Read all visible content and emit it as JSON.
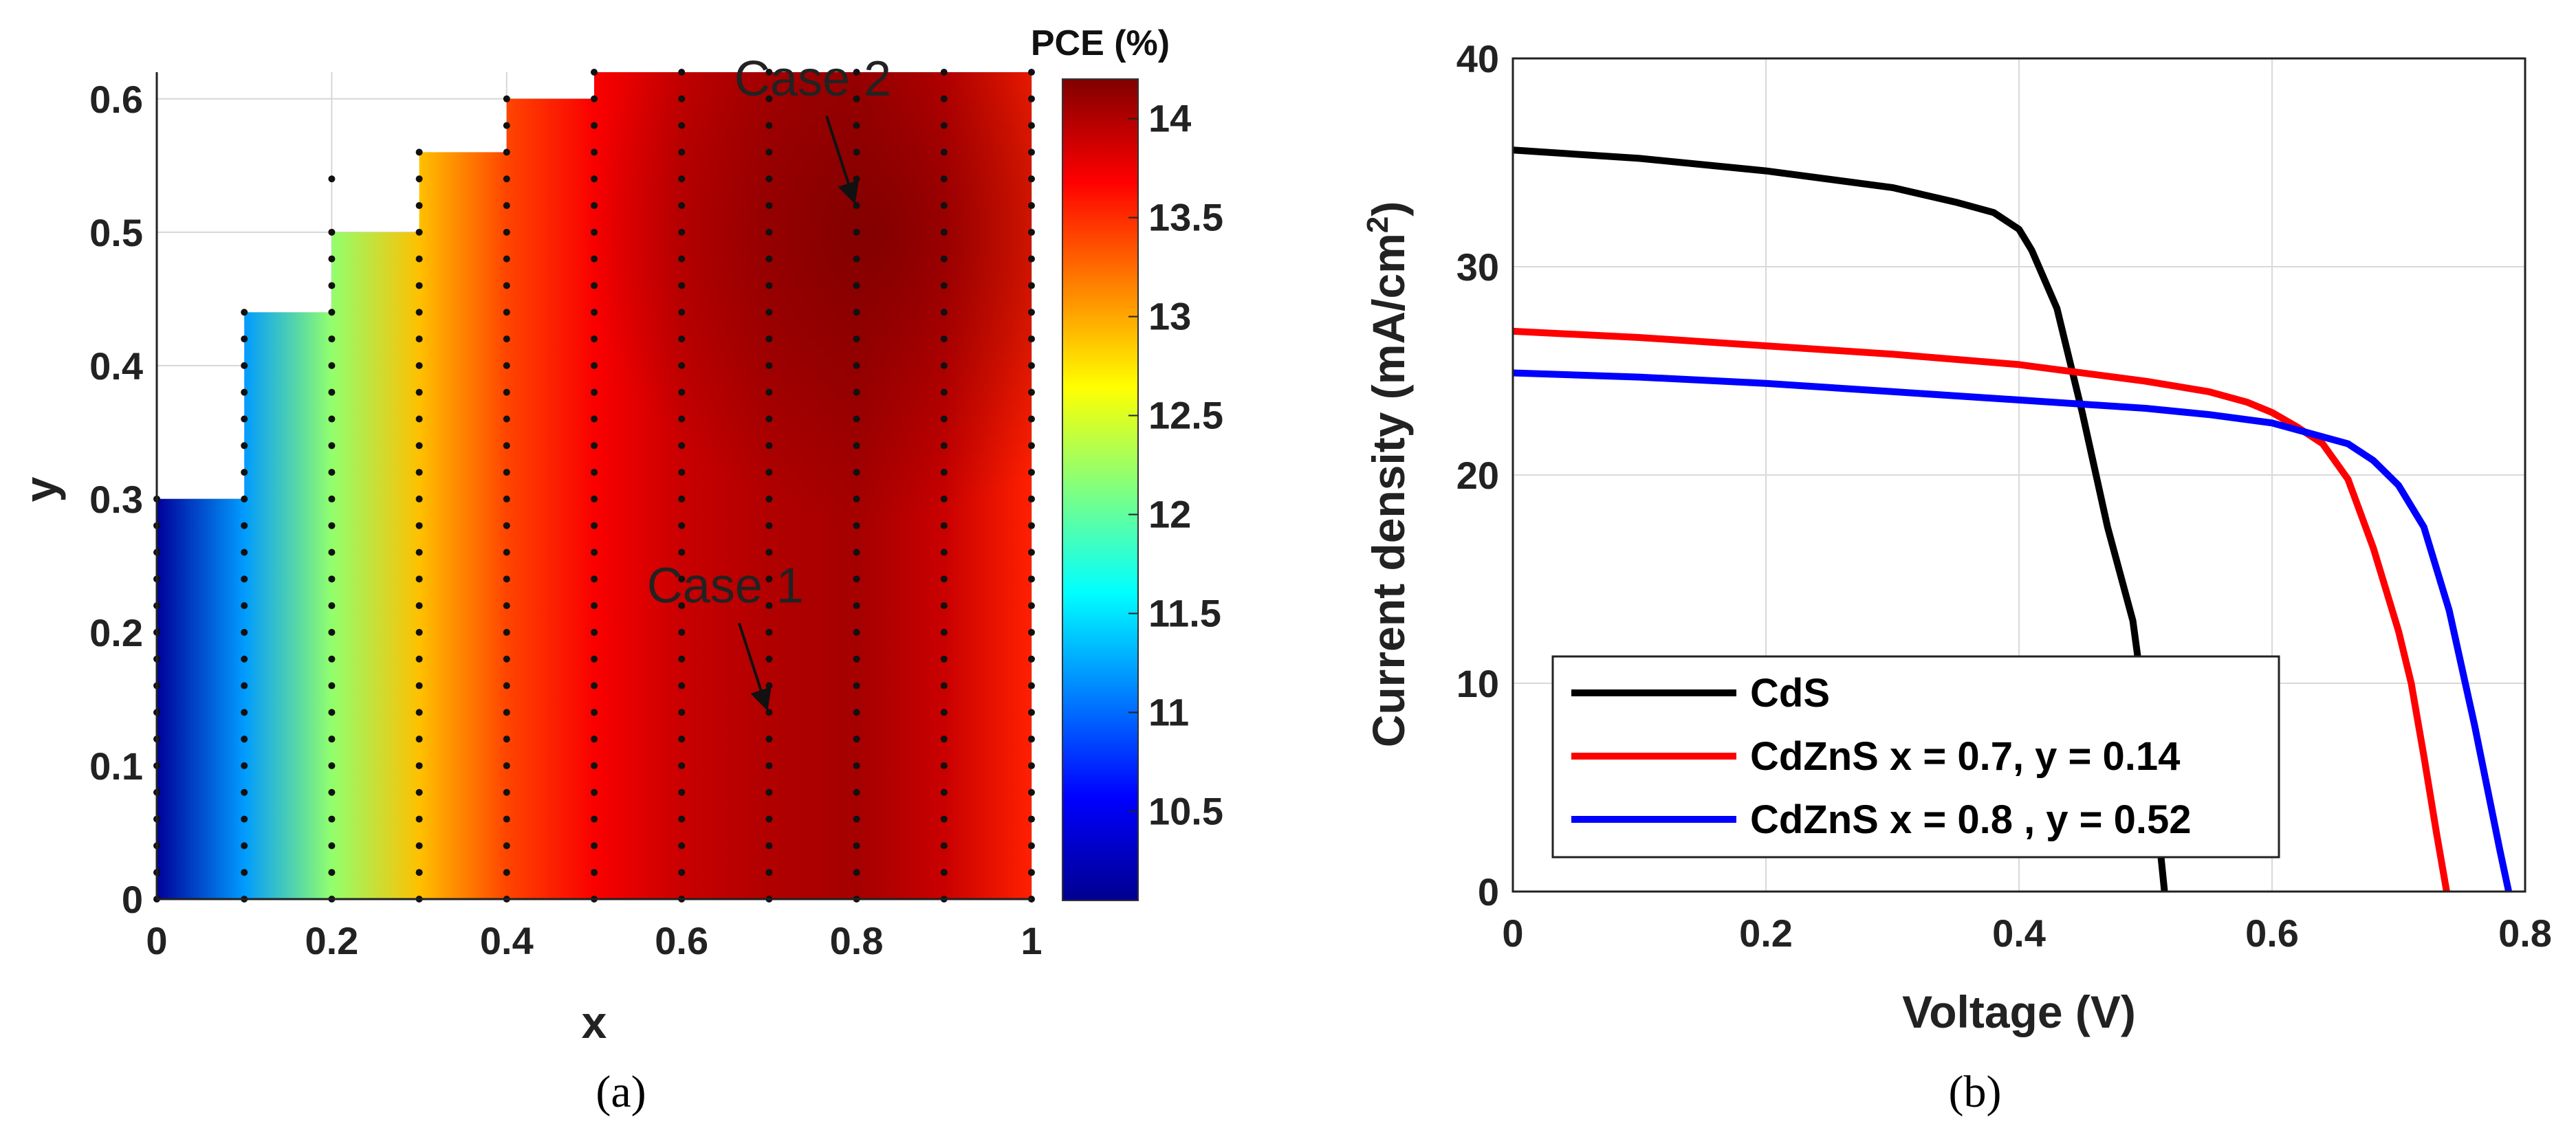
{
  "chart_data": [
    {
      "type": "heatmap",
      "panel_label": "(a)",
      "title": "",
      "xlabel": "x",
      "ylabel": "y",
      "xlim": [
        0,
        1
      ],
      "ylim": [
        0,
        0.62
      ],
      "xticks": [
        "0",
        "0.2",
        "0.4",
        "0.6",
        "0.8",
        "1"
      ],
      "yticks": [
        "0",
        "0.1",
        "0.2",
        "0.3",
        "0.4",
        "0.5",
        "0.6"
      ],
      "colorbar": {
        "label": "PCE (%)",
        "range": [
          10.05,
          14.2
        ],
        "ticks": [
          "10.5",
          "11",
          "11.5",
          "12",
          "12.5",
          "13",
          "13.5",
          "14"
        ]
      },
      "x_columns": [
        0,
        0.1,
        0.2,
        0.3,
        0.4,
        0.5,
        0.6,
        0.7,
        0.8,
        0.9,
        1.0
      ],
      "y_max_per_column": [
        0.3,
        0.44,
        0.5,
        0.56,
        0.6,
        0.62,
        0.62,
        0.62,
        0.62,
        0.62,
        0.62
      ],
      "pce_profile_x": [
        0,
        0.1,
        0.2,
        0.3,
        0.4,
        0.5,
        0.6,
        0.7,
        0.8,
        0.9,
        1.0
      ],
      "pce_profile_values": [
        10.1,
        11.2,
        12.2,
        12.9,
        13.4,
        13.7,
        13.9,
        14.0,
        14.05,
        13.9,
        13.55
      ],
      "annotations": [
        {
          "text": "Case 1",
          "x": 0.7,
          "y": 0.14
        },
        {
          "text": "Case 2",
          "x": 0.8,
          "y": 0.52
        }
      ]
    },
    {
      "type": "line",
      "panel_label": "(b)",
      "title": "",
      "xlabel": "Voltage (V)",
      "ylabel_prefix": "Current density (mA/cm",
      "ylabel_sup": "2",
      "ylabel_suffix": ")",
      "xlim": [
        0,
        0.8
      ],
      "ylim": [
        0,
        40
      ],
      "xticks": [
        "0",
        "0.2",
        "0.4",
        "0.6",
        "0.8"
      ],
      "yticks": [
        "0",
        "10",
        "20",
        "30",
        "40"
      ],
      "grid": true,
      "legend_position": "bottom-left",
      "series": [
        {
          "name": "CdS",
          "color": "#000000",
          "x": [
            0,
            0.1,
            0.2,
            0.3,
            0.35,
            0.38,
            0.4,
            0.41,
            0.43,
            0.45,
            0.47,
            0.49,
            0.5,
            0.51,
            0.515
          ],
          "y": [
            35.6,
            35.2,
            34.6,
            33.8,
            33.1,
            32.6,
            31.8,
            30.8,
            28.0,
            23.0,
            17.5,
            13.0,
            8.5,
            3.0,
            0
          ]
        },
        {
          "name": "CdZnS x = 0.7, y = 0.14",
          "color": "#ff0000",
          "x": [
            0,
            0.1,
            0.2,
            0.3,
            0.4,
            0.5,
            0.55,
            0.58,
            0.6,
            0.62,
            0.64,
            0.66,
            0.68,
            0.7,
            0.71,
            0.72,
            0.73,
            0.738
          ],
          "y": [
            26.9,
            26.6,
            26.2,
            25.8,
            25.3,
            24.5,
            24.0,
            23.5,
            23.0,
            22.3,
            21.5,
            19.8,
            16.5,
            12.5,
            10.0,
            6.5,
            2.8,
            0
          ]
        },
        {
          "name": "CdZnS x = 0.8 , y = 0.52",
          "color": "#0000ff",
          "x": [
            0,
            0.1,
            0.2,
            0.3,
            0.4,
            0.5,
            0.55,
            0.6,
            0.63,
            0.66,
            0.68,
            0.7,
            0.72,
            0.74,
            0.76,
            0.77,
            0.78,
            0.787
          ],
          "y": [
            24.9,
            24.7,
            24.4,
            24.0,
            23.6,
            23.2,
            22.9,
            22.5,
            22.0,
            21.5,
            20.7,
            19.5,
            17.5,
            13.5,
            8.0,
            5.0,
            2.0,
            0
          ]
        }
      ]
    }
  ]
}
